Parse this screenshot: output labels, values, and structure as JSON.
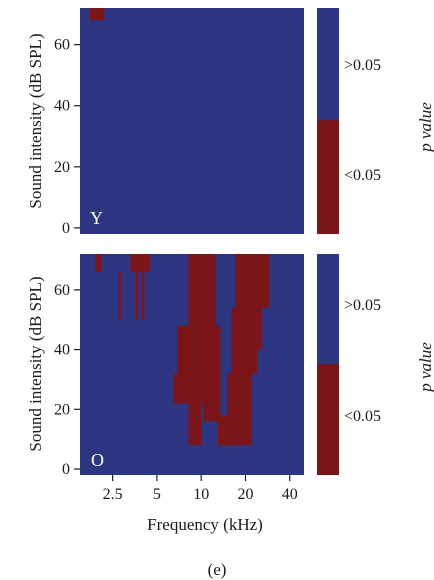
{
  "figure_label": "(e)",
  "colors": {
    "not_significant": "#2e3580",
    "significant": "#7b1517",
    "axis": "#1a1a1a"
  },
  "chart_data": [
    {
      "type": "heatmap",
      "panel_label": "Y",
      "xlabel": "",
      "ylabel": "Sound intensity (dB SPL)",
      "x_scale": "log",
      "x_ticks": [],
      "x_tick_labels": [],
      "ylim": [
        -2,
        72
      ],
      "y_ticks": [
        0,
        20,
        40,
        60
      ],
      "y_tick_labels": [
        "0",
        "20",
        "40",
        "60"
      ],
      "background_category": ">0.05",
      "significant_cells": [
        {
          "f_min": 1.75,
          "f_max": 2.2,
          "db_min": 68,
          "db_max": 72
        }
      ],
      "colorbar": {
        "label": "p value",
        "categories": [
          ">0.05",
          "<0.05"
        ]
      }
    },
    {
      "type": "heatmap",
      "panel_label": "O",
      "xlabel": "Frequency (kHz)",
      "ylabel": "Sound intensity (dB SPL)",
      "x_scale": "log",
      "x_ticks": [
        2.5,
        5,
        10,
        20,
        40
      ],
      "x_tick_labels": [
        "2.5",
        "5",
        "10",
        "20",
        "40"
      ],
      "ylim": [
        -2,
        72
      ],
      "y_ticks": [
        0,
        20,
        40,
        60
      ],
      "y_tick_labels": [
        "0",
        "20",
        "40",
        "60"
      ],
      "background_category": ">0.05",
      "significant_cells": [
        {
          "f_min": 1.9,
          "f_max": 2.1,
          "db_min": 66,
          "db_max": 72
        },
        {
          "f_min": 2.75,
          "f_max": 2.85,
          "db_min": 50,
          "db_max": 66
        },
        {
          "f_min": 3.6,
          "f_max": 3.75,
          "db_min": 50,
          "db_max": 66
        },
        {
          "f_min": 3.95,
          "f_max": 4.1,
          "db_min": 50,
          "db_max": 66
        },
        {
          "f_min": 3.3,
          "f_max": 4.5,
          "db_min": 66,
          "db_max": 72
        },
        {
          "f_min": 8.2,
          "f_max": 12.6,
          "db_min": 48,
          "db_max": 72
        },
        {
          "f_min": 6.9,
          "f_max": 13.5,
          "db_min": 32,
          "db_max": 48
        },
        {
          "f_min": 6.5,
          "f_max": 13.5,
          "db_min": 22,
          "db_max": 32
        },
        {
          "f_min": 8.2,
          "f_max": 10.0,
          "db_min": 8,
          "db_max": 22
        },
        {
          "f_min": 10.3,
          "f_max": 13.5,
          "db_min": 16,
          "db_max": 22
        },
        {
          "f_min": 17.0,
          "f_max": 29.0,
          "db_min": 54,
          "db_max": 72
        },
        {
          "f_min": 16.0,
          "f_max": 26.0,
          "db_min": 40,
          "db_max": 54
        },
        {
          "f_min": 16.0,
          "f_max": 24.0,
          "db_min": 32,
          "db_max": 40
        },
        {
          "f_min": 15.0,
          "f_max": 22.0,
          "db_min": 18,
          "db_max": 32
        },
        {
          "f_min": 13.0,
          "f_max": 22.0,
          "db_min": 8,
          "db_max": 18
        }
      ],
      "colorbar": {
        "label": "p value",
        "categories": [
          ">0.05",
          "<0.05"
        ]
      }
    }
  ]
}
